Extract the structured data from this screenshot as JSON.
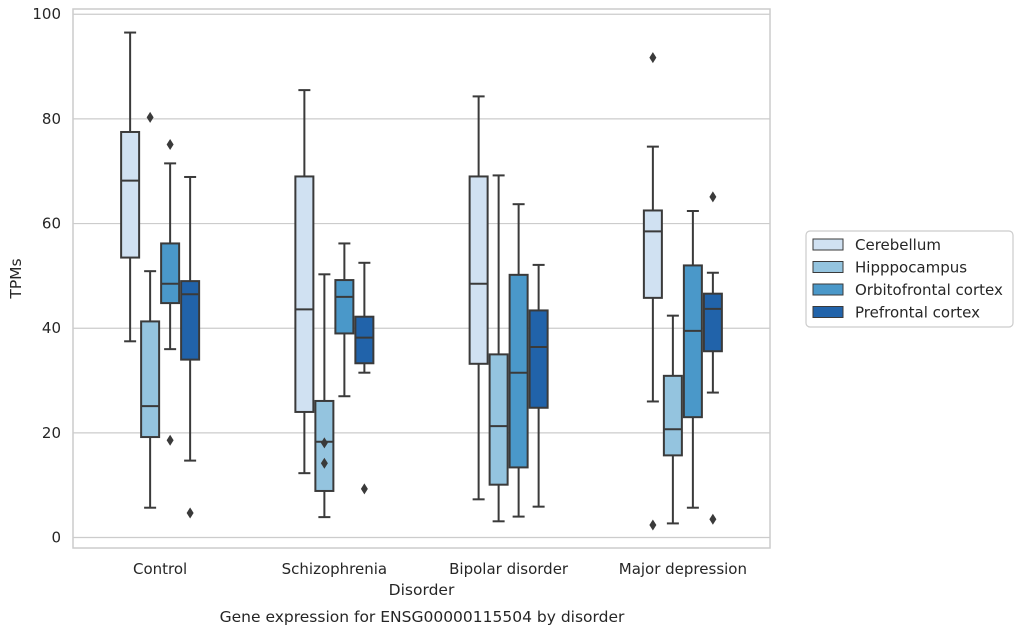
{
  "chart_data": {
    "type": "box",
    "caption": "Gene expression for ENSG00000115504 by disorder",
    "xlabel": "Disorder",
    "ylabel": "TPMs",
    "ylim": [
      -2,
      101
    ],
    "yticks": [
      0,
      20,
      40,
      60,
      80,
      100
    ],
    "grid": "horizontal",
    "legend_position": "right",
    "categories": [
      "Control",
      "Schizophrenia",
      "Bipolar disorder",
      "Major depression"
    ],
    "series": [
      {
        "name": "Cerebellum",
        "color": "#d0e1f2",
        "boxes": [
          {
            "whislo": 37.5,
            "q1": 53.5,
            "med": 68.2,
            "q3": 77.5,
            "whishi": 96.5,
            "fliers": []
          },
          {
            "whislo": 12.3,
            "q1": 24.0,
            "med": 43.6,
            "q3": 69.0,
            "whishi": 85.5,
            "fliers": []
          },
          {
            "whislo": 7.3,
            "q1": 33.2,
            "med": 48.5,
            "q3": 69.0,
            "whishi": 84.3,
            "fliers": []
          },
          {
            "whislo": 26.0,
            "q1": 45.8,
            "med": 58.5,
            "q3": 62.5,
            "whishi": 74.7,
            "fliers": [
              91.7,
              2.4
            ]
          }
        ]
      },
      {
        "name": "Hipppocampus",
        "color": "#94c4df",
        "boxes": [
          {
            "whislo": 5.7,
            "q1": 19.2,
            "med": 25.1,
            "q3": 41.3,
            "whishi": 50.9,
            "fliers": [
              80.3
            ]
          },
          {
            "whislo": 3.9,
            "q1": 8.9,
            "med": 18.3,
            "q3": 26.1,
            "whishi": 50.3,
            "fliers": [
              18.1,
              14.2
            ]
          },
          {
            "whislo": 3.1,
            "q1": 10.1,
            "med": 21.3,
            "q3": 35.0,
            "whishi": 69.2,
            "fliers": []
          },
          {
            "whislo": 2.7,
            "q1": 15.7,
            "med": 20.7,
            "q3": 30.9,
            "whishi": 42.4,
            "fliers": []
          }
        ]
      },
      {
        "name": "Orbitofrontal cortex",
        "color": "#4a98c9",
        "boxes": [
          {
            "whislo": 36.0,
            "q1": 44.8,
            "med": 48.5,
            "q3": 56.2,
            "whishi": 71.5,
            "fliers": [
              75.1,
              18.6
            ]
          },
          {
            "whislo": 27.0,
            "q1": 39.0,
            "med": 46.0,
            "q3": 49.2,
            "whishi": 56.2,
            "fliers": []
          },
          {
            "whislo": 4.0,
            "q1": 13.4,
            "med": 31.5,
            "q3": 50.2,
            "whishi": 63.7,
            "fliers": []
          },
          {
            "whislo": 5.7,
            "q1": 23.0,
            "med": 39.5,
            "q3": 52.0,
            "whishi": 62.4,
            "fliers": []
          }
        ]
      },
      {
        "name": "Prefrontal cortex",
        "color": "#2163aa",
        "boxes": [
          {
            "whislo": 14.7,
            "q1": 34.0,
            "med": 46.5,
            "q3": 49.0,
            "whishi": 68.9,
            "fliers": [
              4.7
            ]
          },
          {
            "whislo": 31.5,
            "q1": 33.3,
            "med": 38.2,
            "q3": 42.2,
            "whishi": 52.5,
            "fliers": [
              9.3
            ]
          },
          {
            "whislo": 5.9,
            "q1": 24.8,
            "med": 36.4,
            "q3": 43.4,
            "whishi": 52.1,
            "fliers": []
          },
          {
            "whislo": 27.7,
            "q1": 35.6,
            "med": 43.7,
            "q3": 46.6,
            "whishi": 50.6,
            "fliers": [
              65.1,
              3.5
            ]
          }
        ]
      }
    ]
  }
}
